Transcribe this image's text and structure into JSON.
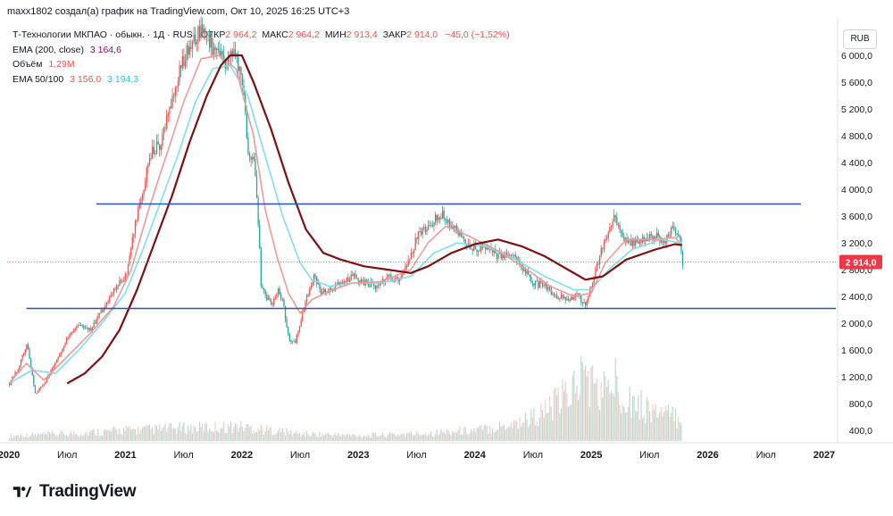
{
  "header": {
    "text": "maxx1802 создал(а) график на TradingView.com, Окт 10, 2025 16:25 UTC+3"
  },
  "legend": {
    "symbol_line": "Т-Технологии МКПАО · обыкн. · 1Д · RUS",
    "ohlc": [
      {
        "label": "ОТКР",
        "value": "2 964,2"
      },
      {
        "label": "МАКС",
        "value": "2 964,2"
      },
      {
        "label": "МИН",
        "value": "2 913,4"
      },
      {
        "label": "ЗАКР",
        "value": "2 914,0"
      }
    ],
    "change": "−45,0 (−1,52%)",
    "ema200_label": "EMA (200, close)",
    "ema200_value": "3 164,6",
    "volume_label": "Объём",
    "volume_value": "1,29M",
    "ema50_100_label": "EMA 50/100",
    "ema50_value": "3 156,0",
    "ema100_value": "3 194,3"
  },
  "currency_button": "RUB",
  "brand": {
    "name": "TradingView"
  },
  "colors": {
    "price_up": "#ef5350",
    "price_down": "#26a69a",
    "ema200": "#7b1113",
    "ema50": "#ef9a9a",
    "ema100": "#80deea",
    "hline": "#2a50b6",
    "last_badge": "#f23645"
  },
  "chart_data": {
    "type": "candlestick",
    "title": "Т-Технологии МКПАО · обыкн. · 1Д · RUS",
    "ylabel": "RUB",
    "ylim": [
      200,
      6400
    ],
    "xlim": [
      "2020-01",
      "2027-01"
    ],
    "y_ticks": [
      "6 000,0",
      "5 600,0",
      "5 200,0",
      "4 800,0",
      "4 400,0",
      "4 000,0",
      "3 600,0",
      "3 200,0",
      "2 800,0",
      "2 400,0",
      "2 000,0",
      "1 600,0",
      "1 200,0",
      "800,0",
      "400,0"
    ],
    "x_ticks": [
      {
        "label": "2020",
        "t": 2020.0
      },
      {
        "label": "Июл",
        "t": 2020.5
      },
      {
        "label": "2021",
        "t": 2021.0
      },
      {
        "label": "Июл",
        "t": 2021.5
      },
      {
        "label": "2022",
        "t": 2022.0
      },
      {
        "label": "Июл",
        "t": 2022.5
      },
      {
        "label": "2023",
        "t": 2023.0
      },
      {
        "label": "Июл",
        "t": 2023.5
      },
      {
        "label": "2024",
        "t": 2024.0
      },
      {
        "label": "Июл",
        "t": 2024.5
      },
      {
        "label": "2025",
        "t": 2025.0
      },
      {
        "label": "Июл",
        "t": 2025.5
      },
      {
        "label": "2026",
        "t": 2026.0
      },
      {
        "label": "Июл",
        "t": 2026.5
      },
      {
        "label": "2027",
        "t": 2027.0
      }
    ],
    "last_price": 2914.0,
    "last_price_label": "2 914,0",
    "horizontal_lines": [
      {
        "name": "resistance",
        "price": 3780,
        "t_start": 2020.75,
        "t_end": 2026.8
      },
      {
        "name": "support",
        "price": 2220,
        "t_start": 2020.15,
        "t_end": 2027.1
      }
    ],
    "price_path": [
      [
        2020.0,
        1100
      ],
      [
        2020.08,
        1350
      ],
      [
        2020.15,
        1700
      ],
      [
        2020.22,
        950
      ],
      [
        2020.3,
        1100
      ],
      [
        2020.38,
        1350
      ],
      [
        2020.5,
        1800
      ],
      [
        2020.6,
        2000
      ],
      [
        2020.7,
        1900
      ],
      [
        2020.8,
        2200
      ],
      [
        2020.9,
        2500
      ],
      [
        2021.0,
        2700
      ],
      [
        2021.08,
        3500
      ],
      [
        2021.15,
        3900
      ],
      [
        2021.2,
        4500
      ],
      [
        2021.3,
        4700
      ],
      [
        2021.38,
        5200
      ],
      [
        2021.45,
        5700
      ],
      [
        2021.55,
        6200
      ],
      [
        2021.65,
        6350
      ],
      [
        2021.75,
        6100
      ],
      [
        2021.85,
        5900
      ],
      [
        2021.92,
        6050
      ],
      [
        2022.0,
        5600
      ],
      [
        2022.05,
        4600
      ],
      [
        2022.1,
        4400
      ],
      [
        2022.13,
        3700
      ],
      [
        2022.16,
        2600
      ],
      [
        2022.2,
        2400
      ],
      [
        2022.25,
        2250
      ],
      [
        2022.3,
        2500
      ],
      [
        2022.35,
        2300
      ],
      [
        2022.4,
        1750
      ],
      [
        2022.45,
        1700
      ],
      [
        2022.5,
        2000
      ],
      [
        2022.55,
        2400
      ],
      [
        2022.62,
        2700
      ],
      [
        2022.68,
        2450
      ],
      [
        2022.75,
        2500
      ],
      [
        2022.85,
        2600
      ],
      [
        2022.95,
        2700
      ],
      [
        2023.05,
        2600
      ],
      [
        2023.15,
        2550
      ],
      [
        2023.25,
        2700
      ],
      [
        2023.35,
        2650
      ],
      [
        2023.45,
        3000
      ],
      [
        2023.5,
        3300
      ],
      [
        2023.58,
        3400
      ],
      [
        2023.65,
        3550
      ],
      [
        2023.72,
        3650
      ],
      [
        2023.8,
        3450
      ],
      [
        2023.9,
        3250
      ],
      [
        2024.0,
        3100
      ],
      [
        2024.1,
        3150
      ],
      [
        2024.2,
        3000
      ],
      [
        2024.3,
        3050
      ],
      [
        2024.4,
        2850
      ],
      [
        2024.5,
        2600
      ],
      [
        2024.6,
        2550
      ],
      [
        2024.7,
        2400
      ],
      [
        2024.8,
        2350
      ],
      [
        2024.88,
        2420
      ],
      [
        2024.95,
        2250
      ],
      [
        2025.0,
        2600
      ],
      [
        2025.05,
        2900
      ],
      [
        2025.12,
        3300
      ],
      [
        2025.2,
        3600
      ],
      [
        2025.28,
        3250
      ],
      [
        2025.35,
        3200
      ],
      [
        2025.45,
        3250
      ],
      [
        2025.55,
        3300
      ],
      [
        2025.62,
        3200
      ],
      [
        2025.7,
        3400
      ],
      [
        2025.75,
        3300
      ],
      [
        2025.78,
        2914
      ]
    ],
    "ema50": [
      [
        2020.0,
        1100
      ],
      [
        2020.15,
        1400
      ],
      [
        2020.3,
        1150
      ],
      [
        2020.5,
        1500
      ],
      [
        2020.7,
        1850
      ],
      [
        2020.9,
        2250
      ],
      [
        2021.05,
        2800
      ],
      [
        2021.2,
        3700
      ],
      [
        2021.35,
        4500
      ],
      [
        2021.5,
        5300
      ],
      [
        2021.65,
        5950
      ],
      [
        2021.8,
        6000
      ],
      [
        2021.95,
        5800
      ],
      [
        2022.1,
        4800
      ],
      [
        2022.2,
        3700
      ],
      [
        2022.3,
        3000
      ],
      [
        2022.4,
        2450
      ],
      [
        2022.5,
        2150
      ],
      [
        2022.6,
        2350
      ],
      [
        2022.75,
        2480
      ],
      [
        2022.95,
        2600
      ],
      [
        2023.2,
        2620
      ],
      [
        2023.45,
        2800
      ],
      [
        2023.6,
        3200
      ],
      [
        2023.75,
        3450
      ],
      [
        2023.95,
        3300
      ],
      [
        2024.2,
        3080
      ],
      [
        2024.45,
        2800
      ],
      [
        2024.65,
        2550
      ],
      [
        2024.85,
        2400
      ],
      [
        2025.0,
        2450
      ],
      [
        2025.12,
        2900
      ],
      [
        2025.3,
        3250
      ],
      [
        2025.55,
        3250
      ],
      [
        2025.72,
        3280
      ],
      [
        2025.78,
        3156
      ]
    ],
    "ema100": [
      [
        2020.0,
        1100
      ],
      [
        2020.2,
        1300
      ],
      [
        2020.4,
        1250
      ],
      [
        2020.6,
        1600
      ],
      [
        2020.8,
        2000
      ],
      [
        2021.0,
        2450
      ],
      [
        2021.15,
        3100
      ],
      [
        2021.3,
        3800
      ],
      [
        2021.45,
        4500
      ],
      [
        2021.6,
        5300
      ],
      [
        2021.75,
        5800
      ],
      [
        2021.9,
        5850
      ],
      [
        2022.05,
        5400
      ],
      [
        2022.2,
        4500
      ],
      [
        2022.35,
        3600
      ],
      [
        2022.5,
        2900
      ],
      [
        2022.6,
        2650
      ],
      [
        2022.75,
        2550
      ],
      [
        2022.95,
        2600
      ],
      [
        2023.2,
        2600
      ],
      [
        2023.45,
        2700
      ],
      [
        2023.65,
        3050
      ],
      [
        2023.85,
        3200
      ],
      [
        2024.1,
        3150
      ],
      [
        2024.35,
        2950
      ],
      [
        2024.6,
        2700
      ],
      [
        2024.85,
        2500
      ],
      [
        2025.0,
        2500
      ],
      [
        2025.15,
        2800
      ],
      [
        2025.35,
        3100
      ],
      [
        2025.6,
        3250
      ],
      [
        2025.78,
        3194
      ]
    ],
    "ema200": [
      [
        2020.5,
        1100
      ],
      [
        2020.65,
        1250
      ],
      [
        2020.8,
        1500
      ],
      [
        2020.95,
        1900
      ],
      [
        2021.1,
        2500
      ],
      [
        2021.25,
        3200
      ],
      [
        2021.4,
        3900
      ],
      [
        2021.55,
        4700
      ],
      [
        2021.7,
        5400
      ],
      [
        2021.82,
        5850
      ],
      [
        2021.9,
        6000
      ],
      [
        2022.0,
        6000
      ],
      [
        2022.1,
        5600
      ],
      [
        2022.25,
        4900
      ],
      [
        2022.4,
        4100
      ],
      [
        2022.55,
        3400
      ],
      [
        2022.7,
        3050
      ],
      [
        2022.85,
        2950
      ],
      [
        2023.05,
        2850
      ],
      [
        2023.25,
        2800
      ],
      [
        2023.45,
        2750
      ],
      [
        2023.6,
        2850
      ],
      [
        2023.8,
        3050
      ],
      [
        2024.0,
        3180
      ],
      [
        2024.2,
        3250
      ],
      [
        2024.4,
        3150
      ],
      [
        2024.6,
        3000
      ],
      [
        2024.8,
        2800
      ],
      [
        2024.95,
        2650
      ],
      [
        2025.1,
        2700
      ],
      [
        2025.3,
        2950
      ],
      [
        2025.55,
        3100
      ],
      [
        2025.72,
        3180
      ],
      [
        2025.78,
        3165
      ]
    ],
    "volume_profile": [
      [
        2020.0,
        30
      ],
      [
        2020.5,
        40
      ],
      [
        2021.0,
        60
      ],
      [
        2021.5,
        70
      ],
      [
        2022.0,
        80
      ],
      [
        2022.5,
        40
      ],
      [
        2023.0,
        30
      ],
      [
        2023.5,
        40
      ],
      [
        2024.0,
        60
      ],
      [
        2024.2,
        80
      ],
      [
        2024.4,
        110
      ],
      [
        2024.6,
        160
      ],
      [
        2024.8,
        260
      ],
      [
        2024.95,
        380
      ],
      [
        2025.05,
        260
      ],
      [
        2025.2,
        320
      ],
      [
        2025.4,
        200
      ],
      [
        2025.6,
        150
      ],
      [
        2025.78,
        120
      ]
    ]
  }
}
